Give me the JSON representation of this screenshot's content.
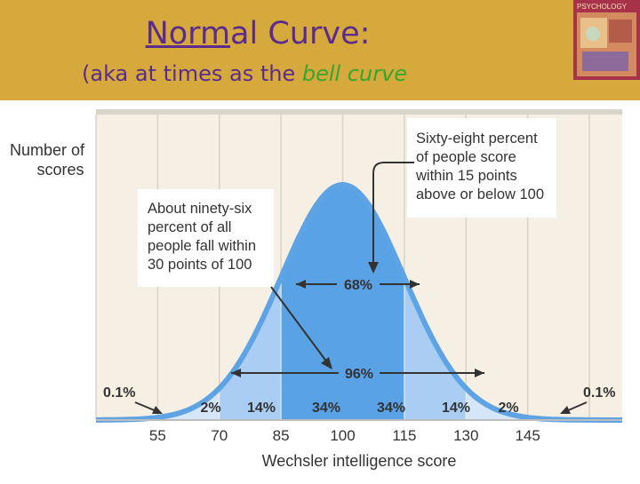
{
  "slide": {
    "title_part1": "Norm",
    "title_part2": "al Curve:",
    "subtitle_prefix": "(aka at times as the ",
    "subtitle_emphasis": "bell curve"
  },
  "book_cover": {
    "label": "PSYCHOLOGY"
  },
  "figure": {
    "y_axis_label_line1": "Number of",
    "y_axis_label_line2": "scores",
    "x_axis_label": "Wechsler intelligence score",
    "callout_68": [
      "Sixty-eight percent",
      "of people score",
      "within 15 points",
      "above or below 100"
    ],
    "callout_96": [
      "About ninety-six",
      "percent of all",
      "people fall within",
      "30 points of 100"
    ],
    "span_68_label": "68%",
    "span_96_label": "96%",
    "tail_left_label": "0.1%",
    "tail_right_label": "0.1%"
  },
  "chart_data": {
    "type": "area",
    "xlabel": "Wechsler intelligence score",
    "ylabel": "Number of scores",
    "x_ticks": [
      "55",
      "70",
      "85",
      "100",
      "115",
      "130",
      "145"
    ],
    "segments": [
      {
        "from": 55,
        "to": 70,
        "label": "2%"
      },
      {
        "from": 70,
        "to": 85,
        "label": "14%"
      },
      {
        "from": 85,
        "to": 100,
        "label": "34%"
      },
      {
        "from": 100,
        "to": 115,
        "label": "34%"
      },
      {
        "from": 115,
        "to": 130,
        "label": "14%"
      },
      {
        "from": 130,
        "to": 145,
        "label": "2%"
      }
    ],
    "tails": [
      "0.1%",
      "0.1%"
    ],
    "curve": {
      "mean": 100,
      "sd": 15
    },
    "grid": true,
    "colors": {
      "curve_line": "#5ea3e3",
      "inner_fill": "#5aa2e6",
      "mid_fill": "#a9cdf3",
      "outer_fill": "#d4e6f8",
      "panel_bg": "#f6efe3"
    }
  }
}
